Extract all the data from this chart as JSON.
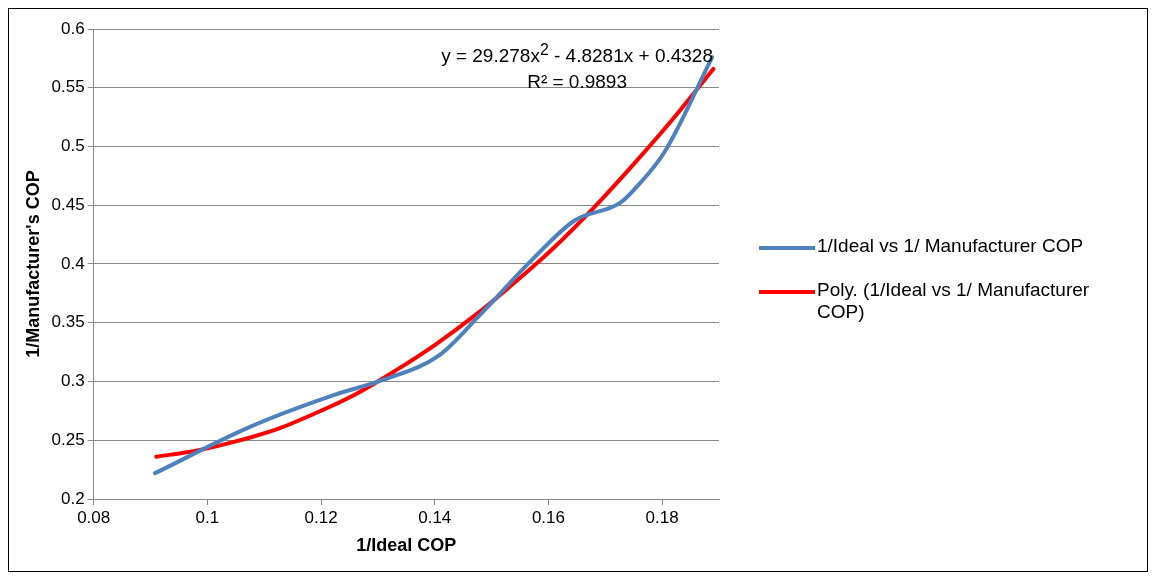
{
  "chart_data": {
    "type": "line",
    "xlabel": "1/Ideal COP",
    "ylabel": "1/Manufacturer's COP",
    "xlim": [
      0.08,
      0.19
    ],
    "xticks": [
      0.08,
      0.1,
      0.12,
      0.14,
      0.16,
      0.18
    ],
    "ylim": [
      0.2,
      0.6
    ],
    "yticks": [
      0.2,
      0.25,
      0.3,
      0.35,
      0.4,
      0.45,
      0.5,
      0.55,
      0.6
    ],
    "grid": "y",
    "legend": "right",
    "marker": "none",
    "line_style": "solid",
    "annotations": [
      "y = 29.278x$^{2}$ - 4.8281x + 0.4328",
      "R² = 0.9893"
    ],
    "series": [
      {
        "name": "1/Ideal vs 1/ Manufacturer COP",
        "color": "#4f81bd",
        "x": [
          0.0908,
          0.1078,
          0.1226,
          0.1313,
          0.1407,
          0.148,
          0.1574,
          0.1646,
          0.1726,
          0.1754,
          0.1805,
          0.1888
        ],
        "values": [
          0.222,
          0.262,
          0.289,
          0.302,
          0.322,
          0.357,
          0.405,
          0.437,
          0.452,
          0.465,
          0.496,
          0.576
        ]
      },
      {
        "name": "Poly. (1/Ideal vs 1/ Manufacturer COP)",
        "color": "#ff0000",
        "type": "line",
        "x": [
          0.091,
          0.098,
          0.105,
          0.112,
          0.119,
          0.126,
          0.133,
          0.14,
          0.147,
          0.154,
          0.161,
          0.168,
          0.175,
          0.182,
          0.189
        ],
        "values": [
          0.236,
          0.241,
          0.249,
          0.259,
          0.273,
          0.289,
          0.309,
          0.331,
          0.356,
          0.384,
          0.414,
          0.448,
          0.485,
          0.524,
          0.566
        ]
      }
    ]
  }
}
